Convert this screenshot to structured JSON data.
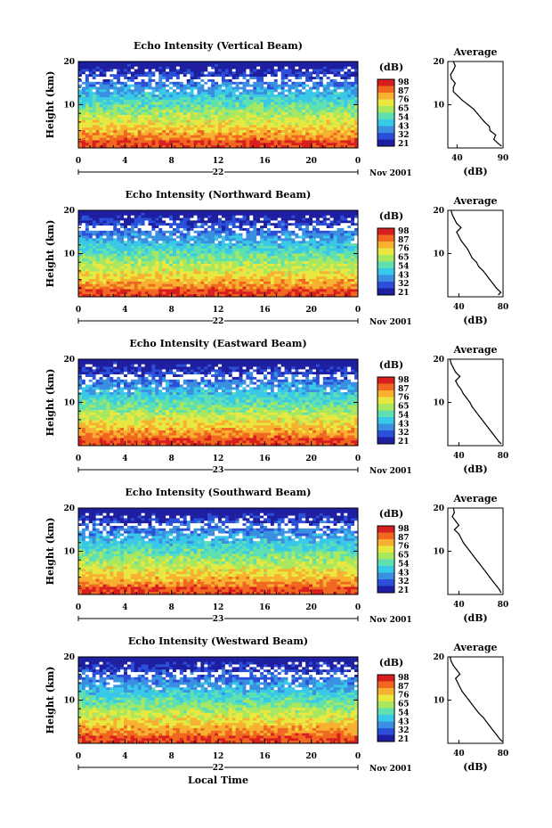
{
  "chart_data": [
    {
      "type": "heatmap",
      "title": "Echo Intensity (Vertical Beam)",
      "ylabel": "Height (km)",
      "ylim": [
        0,
        20
      ],
      "yticks": [
        10,
        20
      ],
      "x_ticks": [
        "0",
        "4",
        "8",
        "12",
        "16",
        "20",
        "0"
      ],
      "xlim": [
        0,
        24
      ],
      "date_label": "22",
      "month_label": "Nov 2001",
      "colorbar": {
        "label": "(dB)",
        "ticks": [
          "98",
          "87",
          "76",
          "65",
          "54",
          "43",
          "32",
          "21"
        ],
        "range": [
          21,
          98
        ]
      },
      "profile": {
        "title": "Average",
        "xlabel": "(dB)",
        "xticks": [
          "40",
          "90"
        ],
        "xlim": [
          30,
          90
        ],
        "ylim": [
          0,
          20
        ],
        "yticks": [
          10,
          20
        ],
        "heights": [
          0.5,
          1,
          2,
          3,
          4,
          5,
          6,
          7,
          8,
          9,
          10,
          11,
          12,
          13,
          14,
          15,
          16,
          17,
          18,
          19,
          20
        ],
        "values": [
          88,
          85,
          80,
          82,
          76,
          75,
          70,
          66,
          62,
          58,
          52,
          46,
          41,
          36,
          36,
          38,
          34,
          33,
          36,
          38,
          36
        ]
      }
    },
    {
      "type": "heatmap",
      "title": "Echo Intensity (Northward Beam)",
      "ylabel": "Height (km)",
      "ylim": [
        0,
        20
      ],
      "yticks": [
        10,
        20
      ],
      "x_ticks": [
        "0",
        "4",
        "8",
        "12",
        "16",
        "20",
        "0"
      ],
      "xlim": [
        0,
        24
      ],
      "date_label": "22",
      "month_label": "Nov 2001",
      "colorbar": {
        "label": "(dB)",
        "ticks": [
          "98",
          "87",
          "76",
          "65",
          "54",
          "43",
          "32",
          "21"
        ],
        "range": [
          21,
          98
        ]
      },
      "profile": {
        "title": "Average",
        "xlabel": "(dB)",
        "xticks": [
          "40",
          "80"
        ],
        "xlim": [
          30,
          80
        ],
        "ylim": [
          0,
          20
        ],
        "yticks": [
          10,
          20
        ],
        "heights": [
          0.5,
          1,
          2,
          3,
          4,
          5,
          6,
          7,
          8,
          9,
          10,
          11,
          12,
          13,
          14,
          15,
          16,
          17,
          18,
          19,
          20
        ],
        "values": [
          76,
          78,
          74,
          71,
          68,
          65,
          62,
          58,
          56,
          52,
          50,
          48,
          45,
          42,
          40,
          38,
          42,
          38,
          36,
          34,
          33
        ]
      }
    },
    {
      "type": "heatmap",
      "title": "Echo Intensity (Eastward Beam)",
      "ylabel": "Height (km)",
      "ylim": [
        0,
        20
      ],
      "yticks": [
        10,
        20
      ],
      "x_ticks": [
        "0",
        "4",
        "8",
        "12",
        "16",
        "20",
        "0"
      ],
      "xlim": [
        0,
        24
      ],
      "date_label": "23",
      "month_label": "Nov 2001",
      "colorbar": {
        "label": "(dB)",
        "ticks": [
          "98",
          "87",
          "76",
          "65",
          "54",
          "43",
          "32",
          "21"
        ],
        "range": [
          21,
          98
        ]
      },
      "profile": {
        "title": "Average",
        "xlabel": "(dB)",
        "xticks": [
          "40",
          "80"
        ],
        "xlim": [
          30,
          80
        ],
        "ylim": [
          0,
          20
        ],
        "yticks": [
          10,
          20
        ],
        "heights": [
          0.5,
          1,
          2,
          3,
          4,
          5,
          6,
          7,
          8,
          9,
          10,
          11,
          12,
          13,
          14,
          15,
          16,
          17,
          18,
          19,
          20
        ],
        "values": [
          78,
          76,
          73,
          70,
          67,
          64,
          61,
          58,
          55,
          52,
          50,
          47,
          44,
          42,
          39,
          37,
          41,
          37,
          35,
          33,
          32
        ]
      }
    },
    {
      "type": "heatmap",
      "title": "Echo Intensity (Southward Beam)",
      "ylabel": "Height (km)",
      "ylim": [
        0,
        20
      ],
      "yticks": [
        10,
        20
      ],
      "x_ticks": [
        "0",
        "4",
        "8",
        "12",
        "16",
        "20",
        "0"
      ],
      "xlim": [
        0,
        24
      ],
      "date_label": "23",
      "month_label": "Nov 2001",
      "colorbar": {
        "label": "(dB)",
        "ticks": [
          "98",
          "87",
          "76",
          "65",
          "54",
          "43",
          "32",
          "21"
        ],
        "range": [
          21,
          98
        ]
      },
      "profile": {
        "title": "Average",
        "xlabel": "(dB)",
        "xticks": [
          "40",
          "80"
        ],
        "xlim": [
          30,
          80
        ],
        "ylim": [
          0,
          20
        ],
        "yticks": [
          10,
          20
        ],
        "heights": [
          0.5,
          1,
          2,
          3,
          4,
          5,
          6,
          7,
          8,
          9,
          10,
          11,
          12,
          13,
          14,
          15,
          16,
          17,
          18,
          19,
          20
        ],
        "values": [
          78,
          77,
          74,
          71,
          68,
          65,
          62,
          59,
          56,
          53,
          50,
          47,
          44,
          42,
          40,
          36,
          40,
          37,
          34,
          36,
          35
        ]
      }
    },
    {
      "type": "heatmap",
      "title": "Echo Intensity (Westward Beam)",
      "ylabel": "Height (km)",
      "ylim": [
        0,
        20
      ],
      "yticks": [
        10,
        20
      ],
      "x_ticks": [
        "0",
        "4",
        "8",
        "12",
        "16",
        "20",
        "0"
      ],
      "xlim": [
        0,
        24
      ],
      "date_label": "22",
      "month_label": "Nov 2001",
      "colorbar": {
        "label": "(dB)",
        "ticks": [
          "98",
          "87",
          "76",
          "65",
          "54",
          "43",
          "32",
          "21"
        ],
        "range": [
          21,
          98
        ]
      },
      "profile": {
        "title": "Average",
        "xlabel": "(dB)",
        "xticks": [
          "40",
          "80"
        ],
        "xlim": [
          30,
          80
        ],
        "ylim": [
          0,
          20
        ],
        "yticks": [
          10,
          20
        ],
        "heights": [
          0.5,
          1,
          2,
          3,
          4,
          5,
          6,
          7,
          8,
          9,
          10,
          11,
          12,
          13,
          14,
          15,
          16,
          17,
          18,
          19,
          20
        ],
        "values": [
          79,
          77,
          74,
          71,
          68,
          65,
          62,
          58,
          55,
          52,
          49,
          46,
          43,
          41,
          39,
          37,
          41,
          38,
          35,
          33,
          32
        ]
      }
    }
  ],
  "footer": {
    "xlabel": "Local Time"
  },
  "colors": {
    "scale": [
      "#1e1ea0",
      "#2b4fd8",
      "#3a8fe0",
      "#38c8e8",
      "#5ee0b0",
      "#a8e860",
      "#e8e840",
      "#f8b030",
      "#f06820",
      "#d81e1e"
    ],
    "missing": "#ffffff"
  }
}
